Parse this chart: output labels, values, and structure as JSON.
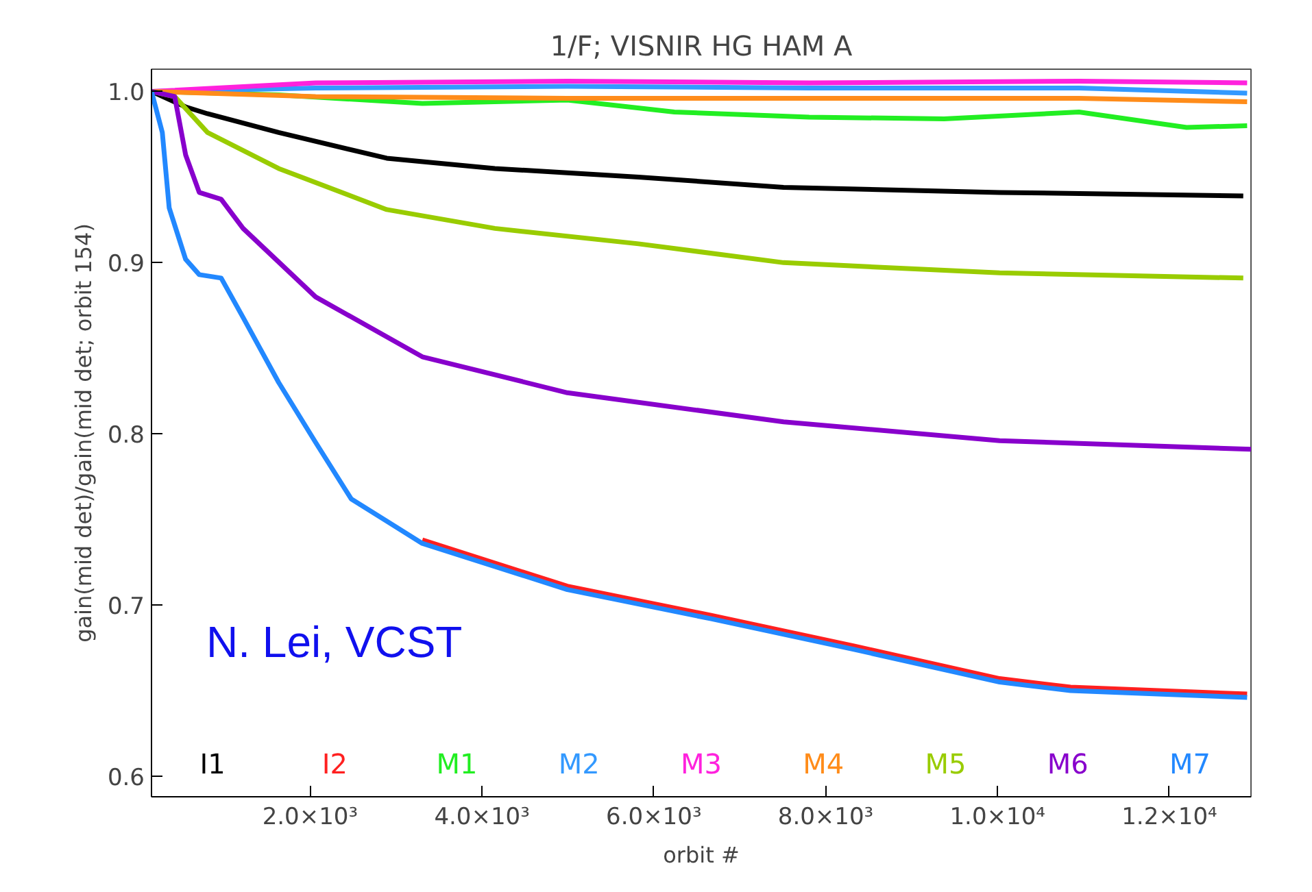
{
  "chart_data": {
    "type": "line",
    "title": "1/F; VISNIR HG HAM A",
    "xlabel": "orbit #",
    "ylabel": "gain(mid det)/gain(mid det; orbit 154)",
    "xlim": [
      154,
      12950
    ],
    "ylim": [
      0.588,
      1.013
    ],
    "xticks": [
      {
        "value": 2000,
        "label": "2.0×10³"
      },
      {
        "value": 4000,
        "label": "4.0×10³"
      },
      {
        "value": 6000,
        "label": "6.0×10³"
      },
      {
        "value": 8000,
        "label": "8.0×10³"
      },
      {
        "value": 10000,
        "label": "1.0×10⁴"
      },
      {
        "value": 12000,
        "label": "1.2×10⁴"
      }
    ],
    "yticks": [
      {
        "value": 0.6,
        "label": "0.6"
      },
      {
        "value": 0.7,
        "label": "0.7"
      },
      {
        "value": 0.8,
        "label": "0.8"
      },
      {
        "value": 0.9,
        "label": "0.9"
      },
      {
        "value": 1.0,
        "label": "1.0"
      }
    ],
    "legend": "bottom",
    "annotations": [
      "N. Lei, VCST"
    ],
    "series": [
      {
        "name": "I1",
        "color": "#000000",
        "x": [
          154,
          551,
          806,
          1634,
          2892,
          4150,
          5822,
          7510,
          10025,
          12860
        ],
        "values": [
          1.0,
          0.991,
          0.987,
          0.976,
          0.961,
          0.955,
          0.95,
          0.944,
          0.941,
          0.939
        ]
      },
      {
        "name": "I2",
        "color": "#ff2020",
        "x": [
          3306,
          4994,
          6666,
          8338,
          10025,
          10850,
          12905
        ],
        "values": [
          0.738,
          0.711,
          0.694,
          0.676,
          0.657,
          0.652,
          0.648
        ]
      },
      {
        "name": "M1",
        "color": "#22ee22",
        "x": [
          154,
          1634,
          3306,
          4994,
          6239,
          7808,
          9378,
          10948,
          12200,
          12905
        ],
        "values": [
          1.0,
          0.998,
          0.993,
          0.995,
          0.988,
          0.985,
          0.984,
          0.988,
          0.979,
          0.98
        ]
      },
      {
        "name": "M2",
        "color": "#3399ff",
        "x": [
          154,
          2064,
          4994,
          7808,
          10948,
          12905
        ],
        "values": [
          1.0,
          1.002,
          1.003,
          1.002,
          1.002,
          0.999
        ]
      },
      {
        "name": "M3",
        "color": "#ff22dd",
        "x": [
          154,
          2064,
          4994,
          7808,
          10948,
          12905
        ],
        "values": [
          1.0,
          1.005,
          1.006,
          1.005,
          1.006,
          1.005
        ]
      },
      {
        "name": "M4",
        "color": "#ff8c1a",
        "x": [
          154,
          2064,
          4994,
          7808,
          10948,
          12905
        ],
        "values": [
          1.0,
          0.997,
          0.996,
          0.996,
          0.996,
          0.994
        ]
      },
      {
        "name": "M5",
        "color": "#99cc00",
        "x": [
          154,
          424,
          806,
          1634,
          2892,
          4150,
          5822,
          7510,
          10025,
          12860
        ],
        "values": [
          1.0,
          0.997,
          0.976,
          0.955,
          0.931,
          0.92,
          0.911,
          0.9,
          0.894,
          0.891
        ]
      },
      {
        "name": "M6",
        "color": "#8800cc",
        "x": [
          154,
          424,
          551,
          710,
          965,
          1220,
          2064,
          3306,
          4994,
          7510,
          10025,
          12950
        ],
        "values": [
          1.0,
          0.997,
          0.963,
          0.941,
          0.937,
          0.92,
          0.88,
          0.845,
          0.824,
          0.807,
          0.796,
          0.791
        ]
      },
      {
        "name": "M7",
        "color": "#2288ff",
        "x": [
          154,
          280,
          360,
          551,
          710,
          965,
          1220,
          1634,
          2064,
          2478,
          3306,
          4994,
          6666,
          8338,
          10025,
          10850,
          12905
        ],
        "values": [
          1.0,
          0.976,
          0.932,
          0.902,
          0.893,
          0.891,
          0.868,
          0.83,
          0.795,
          0.762,
          0.736,
          0.709,
          0.692,
          0.674,
          0.655,
          0.65,
          0.646
        ]
      }
    ]
  }
}
